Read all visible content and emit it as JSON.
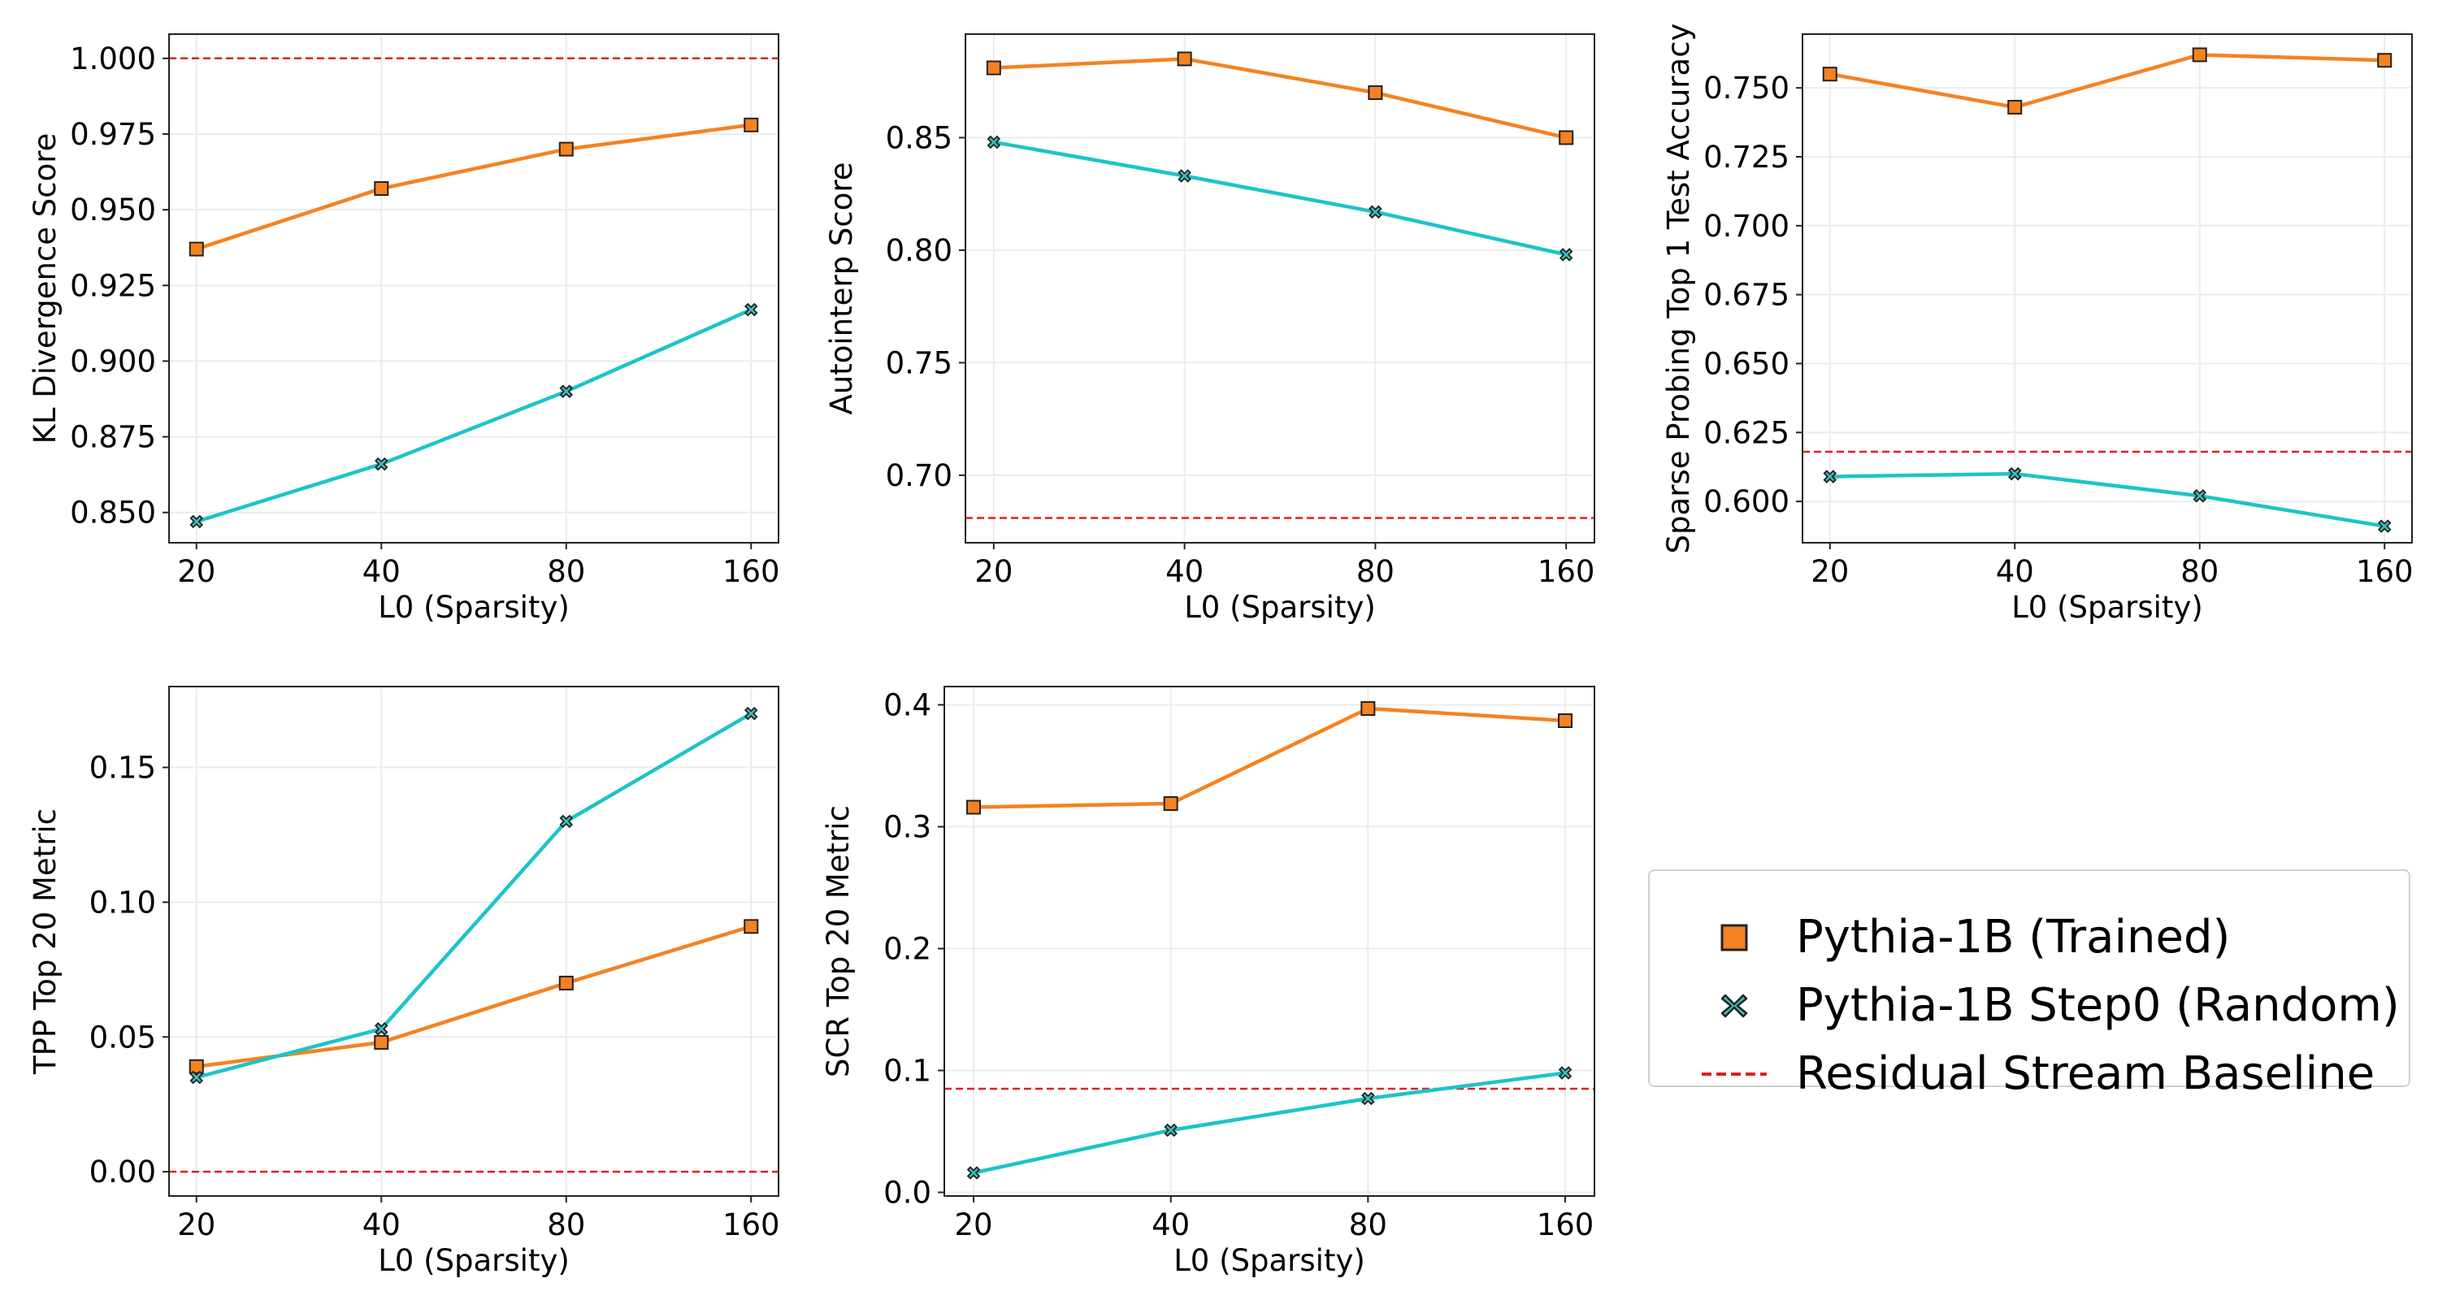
{
  "chart_data": [
    {
      "type": "line",
      "xlabel": "L0 (Sparsity)",
      "ylabel": "KL Divergence Score",
      "categories": [
        "20",
        "40",
        "80",
        "160"
      ],
      "ylim": [
        0.84,
        1.008
      ],
      "yticks": [
        0.85,
        0.875,
        0.9,
        0.925,
        0.95,
        0.975,
        1.0
      ],
      "ytick_labels": [
        "0.850",
        "0.875",
        "0.900",
        "0.925",
        "0.950",
        "0.975",
        "1.000"
      ],
      "series": [
        {
          "name": "Pythia-1B (Trained)",
          "values": [
            0.937,
            0.957,
            0.97,
            0.978
          ]
        },
        {
          "name": "Pythia-1B Step0 (Random)",
          "values": [
            0.847,
            0.866,
            0.89,
            0.917
          ]
        }
      ],
      "baseline": 1.0
    },
    {
      "type": "line",
      "xlabel": "L0 (Sparsity)",
      "ylabel": "Autointerp Score",
      "categories": [
        "20",
        "40",
        "80",
        "160"
      ],
      "ylim": [
        0.67,
        0.896
      ],
      "yticks": [
        0.7,
        0.75,
        0.8,
        0.85
      ],
      "ytick_labels": [
        "0.70",
        "0.75",
        "0.80",
        "0.85"
      ],
      "series": [
        {
          "name": "Pythia-1B (Trained)",
          "values": [
            0.881,
            0.885,
            0.87,
            0.85
          ]
        },
        {
          "name": "Pythia-1B Step0 (Random)",
          "values": [
            0.848,
            0.833,
            0.817,
            0.798
          ]
        }
      ],
      "baseline": 0.681
    },
    {
      "type": "line",
      "xlabel": "L0 (Sparsity)",
      "ylabel": "Sparse Probing Top 1 Test Accuracy",
      "categories": [
        "20",
        "40",
        "80",
        "160"
      ],
      "ylim": [
        0.585,
        0.7695
      ],
      "yticks": [
        0.6,
        0.625,
        0.65,
        0.675,
        0.7,
        0.725,
        0.75
      ],
      "ytick_labels": [
        "0.600",
        "0.625",
        "0.650",
        "0.675",
        "0.700",
        "0.725",
        "0.750"
      ],
      "series": [
        {
          "name": "Pythia-1B (Trained)",
          "values": [
            0.755,
            0.743,
            0.762,
            0.76
          ]
        },
        {
          "name": "Pythia-1B Step0 (Random)",
          "values": [
            0.609,
            0.61,
            0.602,
            0.591
          ]
        }
      ],
      "baseline": 0.618
    },
    {
      "type": "line",
      "xlabel": "L0 (Sparsity)",
      "ylabel": "TPP Top 20 Metric",
      "categories": [
        "20",
        "40",
        "80",
        "160"
      ],
      "ylim": [
        -0.009,
        0.18
      ],
      "yticks": [
        0.0,
        0.05,
        0.1,
        0.15
      ],
      "ytick_labels": [
        "0.00",
        "0.05",
        "0.10",
        "0.15"
      ],
      "series": [
        {
          "name": "Pythia-1B (Trained)",
          "values": [
            0.039,
            0.048,
            0.07,
            0.091
          ]
        },
        {
          "name": "Pythia-1B Step0 (Random)",
          "values": [
            0.035,
            0.053,
            0.13,
            0.17
          ]
        }
      ],
      "baseline": 0.0
    },
    {
      "type": "line",
      "xlabel": "L0 (Sparsity)",
      "ylabel": "SCR Top 20 Metric",
      "categories": [
        "20",
        "40",
        "80",
        "160"
      ],
      "ylim": [
        -0.003,
        0.415
      ],
      "yticks": [
        0.0,
        0.1,
        0.2,
        0.3,
        0.4
      ],
      "ytick_labels": [
        "0.0",
        "0.1",
        "0.2",
        "0.3",
        "0.4"
      ],
      "series": [
        {
          "name": "Pythia-1B (Trained)",
          "values": [
            0.316,
            0.319,
            0.397,
            0.387
          ]
        },
        {
          "name": "Pythia-1B Step0 (Random)",
          "values": [
            0.016,
            0.051,
            0.077,
            0.098
          ]
        }
      ],
      "baseline": 0.085
    }
  ],
  "legend": {
    "trained_label": "Pythia-1B (Trained)",
    "random_label": "Pythia-1B Step0 (Random)",
    "baseline_label": "Residual Stream Baseline"
  },
  "colors": {
    "trained": "#f58220",
    "random": "#1cc4c8",
    "baseline": "#e0201e",
    "grid": "#ececec"
  }
}
